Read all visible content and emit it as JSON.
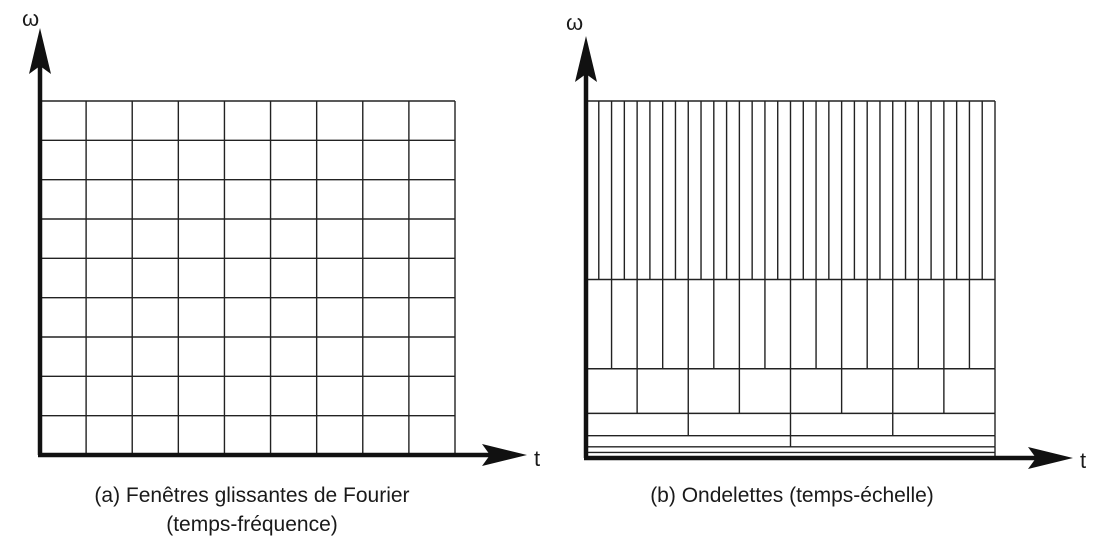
{
  "panels": [
    {
      "id": "a",
      "type": "time-frequency-tiling",
      "x_axis_label": "t",
      "y_axis_label": "ω",
      "caption_line1": "(a) Fenêtres glissantes de Fourier",
      "caption_line2": "(temps-fréquence)",
      "grid": {
        "columns": 9,
        "rows": 9
      }
    },
    {
      "id": "b",
      "type": "time-scale-tiling",
      "x_axis_label": "t",
      "y_axis_label": "ω",
      "caption_line1": "(b) Ondelettes (temps-échelle)",
      "bands_top_to_bottom": [
        {
          "level": 1,
          "divisions": 32
        },
        {
          "level": 2,
          "divisions": 16
        },
        {
          "level": 3,
          "divisions": 8
        },
        {
          "level": 4,
          "divisions": 4
        },
        {
          "level": 5,
          "divisions": 2
        },
        {
          "level": 6,
          "divisions": 1
        },
        {
          "level": 7,
          "divisions": 1
        }
      ]
    }
  ],
  "colors": {
    "ink": "#111111",
    "background": "#ffffff"
  }
}
